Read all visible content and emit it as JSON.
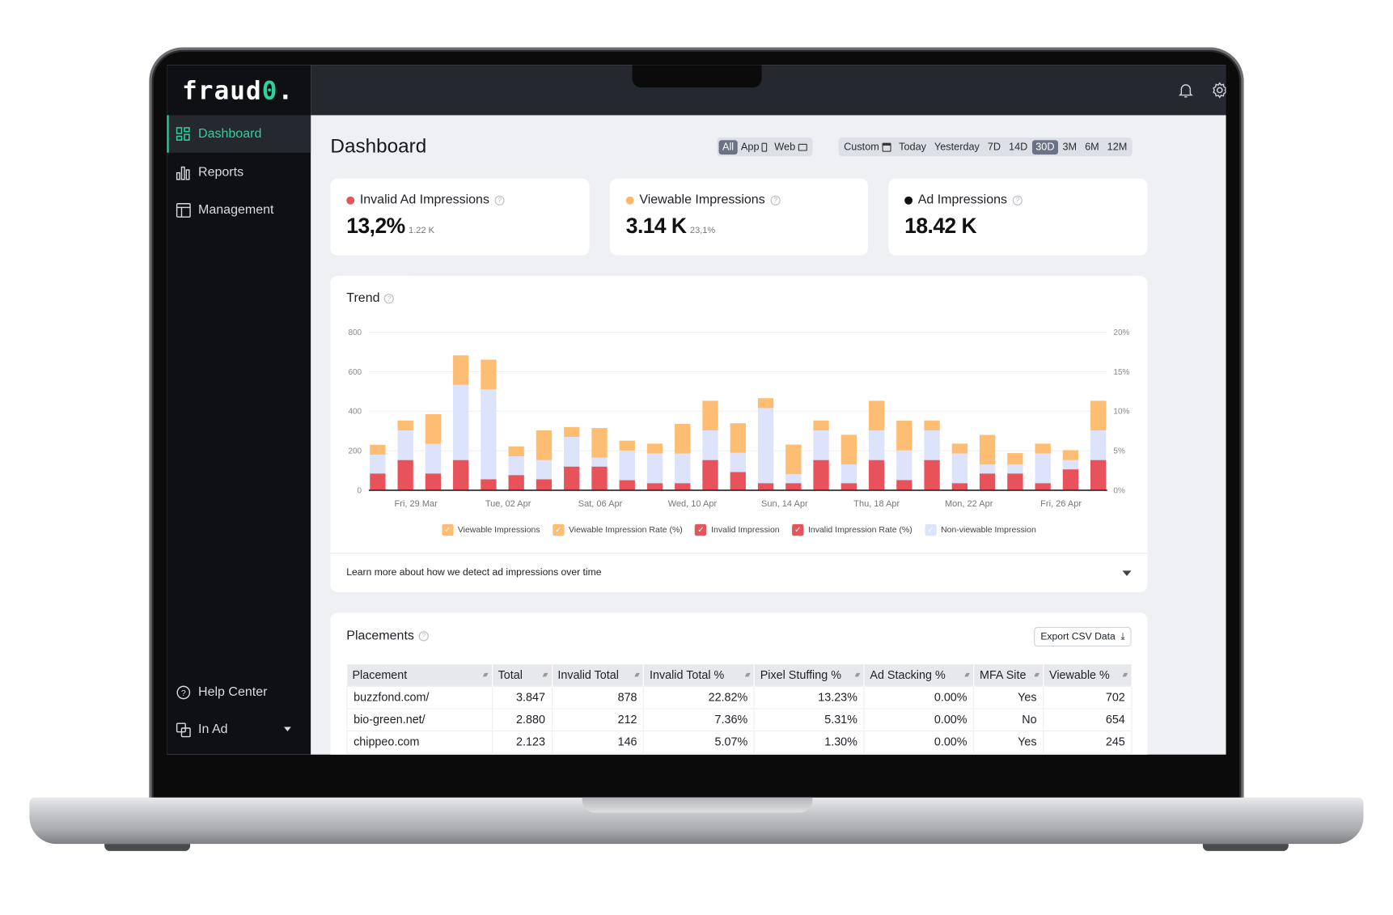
{
  "app": {
    "logo": "fraud0."
  },
  "sidebar": {
    "items": [
      {
        "label": "Dashboard",
        "icon": "grid-icon",
        "active": true
      },
      {
        "label": "Reports",
        "icon": "bar-chart-icon"
      },
      {
        "label": "Management",
        "icon": "layout-icon"
      }
    ],
    "bottom": [
      {
        "label": "Help Center",
        "icon": "help-circle-icon"
      },
      {
        "label": "In Ad",
        "icon": "copy-icon"
      }
    ]
  },
  "header": {
    "title": "Dashboard",
    "icons": [
      "bell-icon",
      "gear-icon"
    ]
  },
  "filters": {
    "channel": [
      {
        "label": "All",
        "selected": true
      },
      {
        "label": "App",
        "icon": "phone-icon"
      },
      {
        "label": "Web",
        "icon": "monitor-icon"
      }
    ],
    "range": [
      {
        "label": "Custom",
        "icon": "calendar-icon"
      },
      {
        "label": "Today"
      },
      {
        "label": "Yesterday"
      },
      {
        "label": "7D"
      },
      {
        "label": "14D"
      },
      {
        "label": "30D",
        "selected": true
      },
      {
        "label": "3M"
      },
      {
        "label": "6M"
      },
      {
        "label": "12M"
      }
    ]
  },
  "kpis": [
    {
      "label": "Invalid Ad Impressions",
      "value": "13,2%",
      "sub": "1.22 K",
      "color": "#e8535b"
    },
    {
      "label": "Viewable Impressions",
      "value": "3.14 K",
      "sub": "23,1%",
      "color": "#fbb869"
    },
    {
      "label": "Ad Impressions",
      "value": "18.42 K",
      "sub": "",
      "color": "#111111"
    }
  ],
  "trend": {
    "title": "Trend",
    "learn_more": "Learn more about how we detect ad impressions over time"
  },
  "chart_data": {
    "type": "bar",
    "stacked": true,
    "title": "Trend",
    "ylim": [
      0,
      800
    ],
    "yticks": [
      "0",
      "200",
      "400",
      "600",
      "800"
    ],
    "y2lim": [
      0,
      20
    ],
    "y2ticks": [
      "0%",
      "5%",
      "10%",
      "15%",
      "20%"
    ],
    "xtick_labels": [
      "Fri, 29 Mar",
      "Tue, 02 Apr",
      "Sat, 06 Apr",
      "Wed, 10 Apr",
      "Sun, 14 Apr",
      "Thu, 18 Apr",
      "Mon, 22 Apr",
      "Fri, 26 Apr"
    ],
    "grid": true,
    "legend_position": "bottom",
    "legend": [
      {
        "name": "Viewable Impressions",
        "color": "#fdbe74"
      },
      {
        "name": "Viewable Impression Rate (%)",
        "color": "#fdbe74"
      },
      {
        "name": "Invalid Impression",
        "color": "#e8535b"
      },
      {
        "name": "Invalid Impression Rate  (%)",
        "color": "#e8535b"
      },
      {
        "name": "Non-viewable Impression",
        "color": "#dce3fb"
      }
    ],
    "series": [
      {
        "name": "Invalid Impression",
        "color": "#e8535b",
        "values": [
          85,
          153,
          85,
          153,
          56,
          77,
          56,
          120,
          120,
          51,
          36,
          36,
          153,
          92,
          36,
          36,
          153,
          36,
          153,
          52,
          153,
          36,
          85,
          85,
          36,
          106,
          153
        ]
      },
      {
        "name": "Non-viewable Impression",
        "color": "#dce3fb",
        "values": [
          95,
          150,
          150,
          380,
          455,
          95,
          97,
          150,
          45,
          150,
          150,
          150,
          150,
          97,
          380,
          45,
          150,
          95,
          150,
          150,
          150,
          150,
          45,
          45,
          150,
          47,
          150
        ]
      },
      {
        "name": "Viewable Impressions",
        "color": "#fdbe74",
        "values": [
          50,
          50,
          150,
          150,
          150,
          50,
          150,
          50,
          150,
          50,
          50,
          150,
          150,
          150,
          50,
          150,
          50,
          150,
          150,
          150,
          50,
          50,
          150,
          58,
          50,
          50,
          150
        ]
      }
    ]
  },
  "placements": {
    "title": "Placements",
    "export_label": "Export CSV Data",
    "columns": [
      "Placement",
      "Total",
      "Invalid Total",
      "Invalid Total %",
      "Pixel Stuffing %",
      "Ad Stacking %",
      "MFA Site",
      "Viewable %"
    ],
    "rows": [
      [
        "buzzfond.com/",
        "3.847",
        "878",
        "22.82%",
        "13.23%",
        "0.00%",
        "Yes",
        "702"
      ],
      [
        "bio-green.net/",
        "2.880",
        "212",
        "7.36%",
        "5.31%",
        "0.00%",
        "No",
        "654"
      ],
      [
        "chippeo.com",
        "2.123",
        "146",
        "5.07%",
        "1.30%",
        "0.00%",
        "Yes",
        "245"
      ]
    ]
  }
}
